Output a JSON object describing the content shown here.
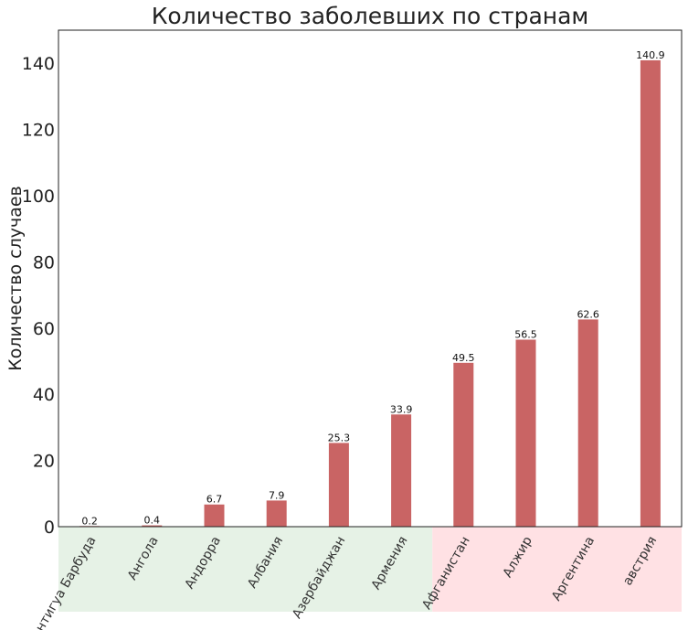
{
  "chart_data": {
    "type": "bar",
    "title": "Количество заболевших по странам",
    "xlabel": "",
    "ylabel": "Количество случаев",
    "ylim": [
      0,
      150
    ],
    "yticks": [
      0,
      20,
      40,
      60,
      80,
      100,
      120,
      140
    ],
    "grid": false,
    "categories": [
      "Антигуа Барбуда",
      "Ангола",
      "Андорра",
      "Албания",
      "Азербайджан",
      "Армения",
      "Афганистан",
      "Алжир",
      "Аргентина",
      "австрия"
    ],
    "values": [
      0.2,
      0.4,
      6.7,
      7.9,
      25.3,
      33.9,
      49.5,
      56.5,
      62.6,
      140.9
    ],
    "value_labels": [
      "0.2",
      "0.4",
      "6.7",
      "7.9",
      "25.3",
      "33.9",
      "49.5",
      "56.5",
      "62.6",
      "140.9"
    ],
    "bar_color": "#c96464",
    "category_groups": [
      {
        "from": 0,
        "to": 5,
        "color": "#e6f2e6"
      },
      {
        "from": 6,
        "to": 9,
        "color": "#ffe1e4"
      }
    ]
  }
}
